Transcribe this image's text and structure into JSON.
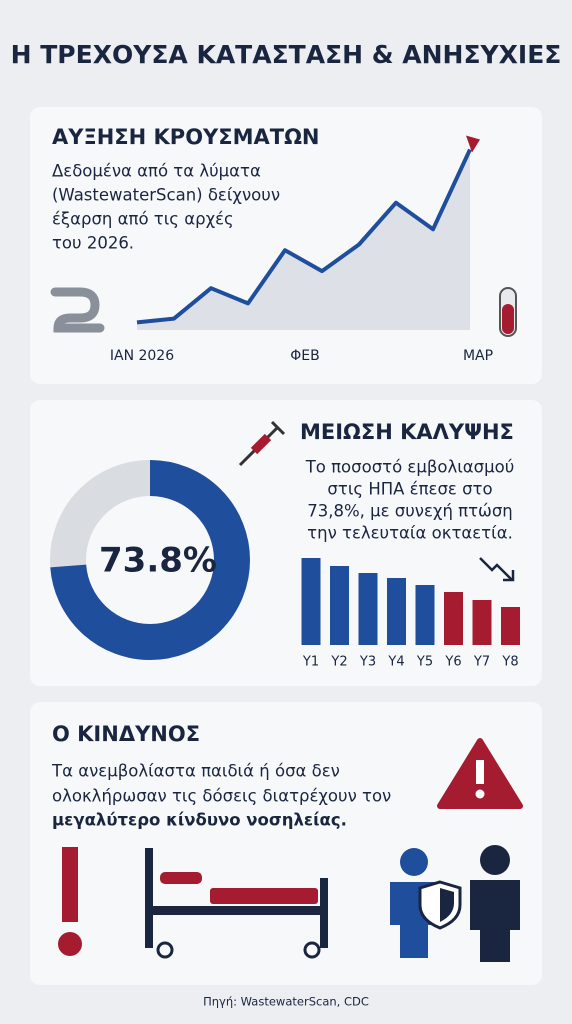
{
  "title": "Η ΤΡΕΧΟΥΣΑ ΚΑΤΑΣΤΑΣΗ & ΑΝΗΣΥΧΙΕΣ",
  "cases": {
    "heading": "ΑΥΞΗΣΗ ΚΡΟΥΣΜΑΤΩΝ",
    "text_lines": [
      "Δεδομένα από τα λύματα",
      "(WastewaterScan) δείχνουν",
      "έξαρση από τις αρχές",
      "του 2026."
    ],
    "chart": {
      "type": "line",
      "x_labels": [
        "ΙΑΝ 2026",
        "ΦΕΒ",
        "ΜΑΡ"
      ],
      "values": [
        4,
        6,
        22,
        14,
        42,
        31,
        45,
        67,
        53,
        95
      ],
      "color": "#1f4e9c",
      "accent": "#a51c30",
      "area_color": "#dde0e6"
    }
  },
  "coverage": {
    "heading": "ΜΕΙΩΣΗ ΚΑΛΥΨΗΣ",
    "text_lines": [
      "Το ποσοστό εμβολιασμού",
      "στις ΗΠΑ έπεσε στο",
      "73,8%, με συνεχή πτώση",
      "την τελευταία οκταετία."
    ],
    "donut": {
      "type": "pie",
      "values": [
        73.8
      ],
      "value_labels": [
        "73.8%"
      ],
      "color": "#1f4e9c",
      "rest_color": "#d9dce1"
    },
    "bars": {
      "type": "bar",
      "categories": [
        "Y1",
        "Y2",
        "Y3",
        "Y4",
        "Y5",
        "Y6",
        "Y7",
        "Y8"
      ],
      "values": [
        87,
        79,
        72,
        67,
        60,
        53,
        45,
        38
      ],
      "colors": [
        "#1f4e9c",
        "#1f4e9c",
        "#1f4e9c",
        "#1f4e9c",
        "#1f4e9c",
        "#a51c30",
        "#a51c30",
        "#a51c30"
      ],
      "ylim": [
        0,
        100
      ]
    }
  },
  "risk": {
    "heading": "Ο ΚΙΝΔΥΝΟΣ",
    "text_lines": [
      "Τα ανεμβολίαστα παιδιά ή όσα δεν",
      "ολοκλήρωσαν τις δόσεις διατρέχουν τον"
    ],
    "text_bold": "μεγαλύτερο κίνδυνο νοσηλείας."
  },
  "source": "Πηγή: WastewaterScan, CDC"
}
